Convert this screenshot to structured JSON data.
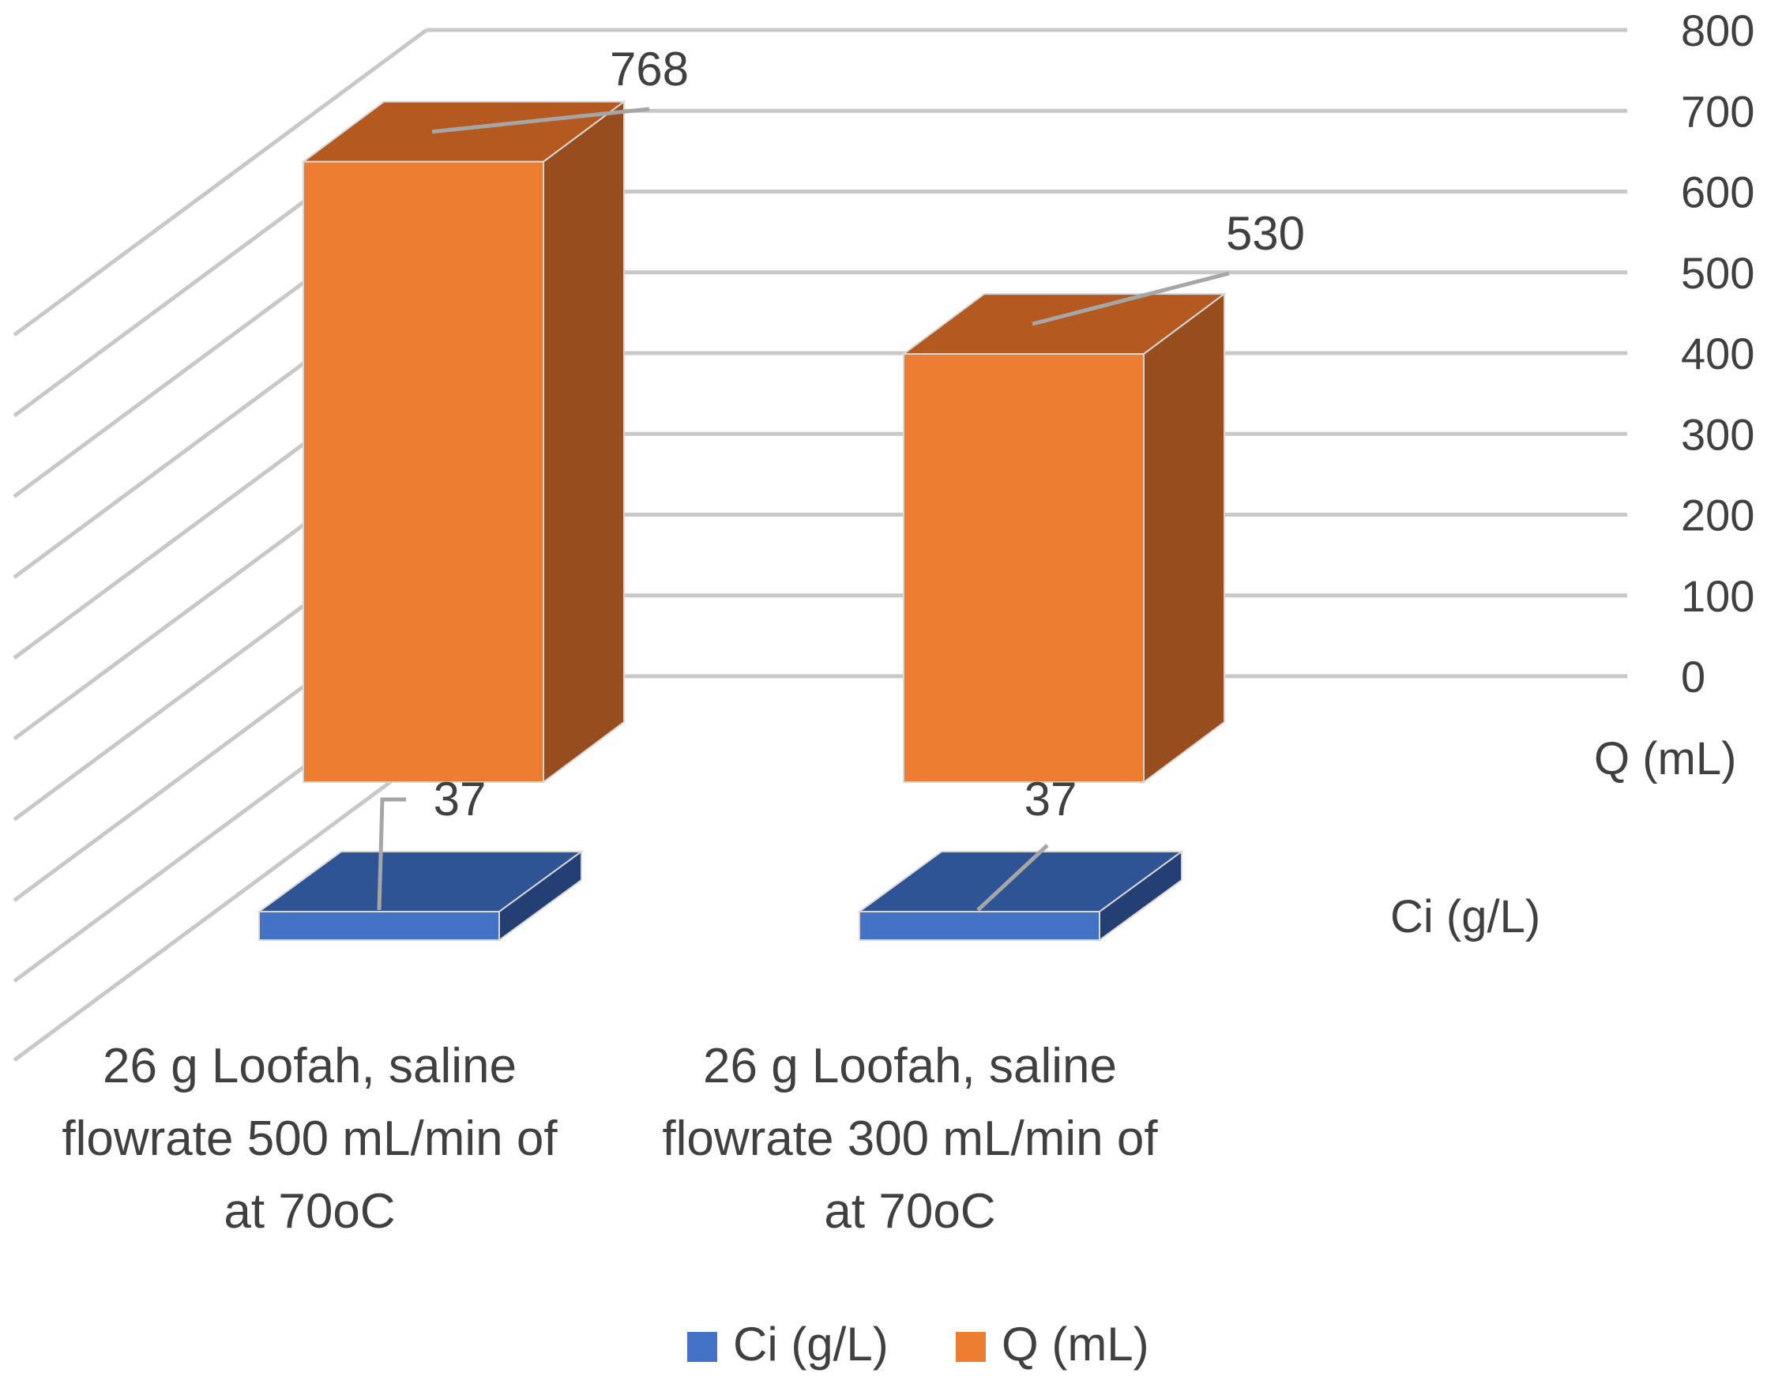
{
  "chart_data": {
    "type": "bar",
    "variant": "3d-column",
    "title": "",
    "categories": [
      [
        "26 g Loofah,  saline",
        "flowrate 500 mL/min of",
        "at 70oC"
      ],
      [
        "26 g Loofah,  saline",
        "flowrate 300 mL/min of",
        "at 70oC"
      ]
    ],
    "series": [
      {
        "name": "Ci (g/L)",
        "values": [
          37,
          37
        ],
        "color": "#4472C4"
      },
      {
        "name": "Q (mL)",
        "values": [
          768,
          530
        ],
        "color": "#ED7D31"
      }
    ],
    "ylim": [
      0,
      800
    ],
    "yticks": [
      "0",
      "100",
      "200",
      "300",
      "400",
      "500",
      "600",
      "700",
      "800"
    ],
    "depth_axis_labels": [
      "Ci (g/L)",
      "Q (mL)"
    ],
    "legend": {
      "position": "bottom",
      "entries": [
        "Ci (g/L)",
        "Q (mL)"
      ]
    },
    "grid": true,
    "xlabel": "",
    "ylabel": ""
  }
}
